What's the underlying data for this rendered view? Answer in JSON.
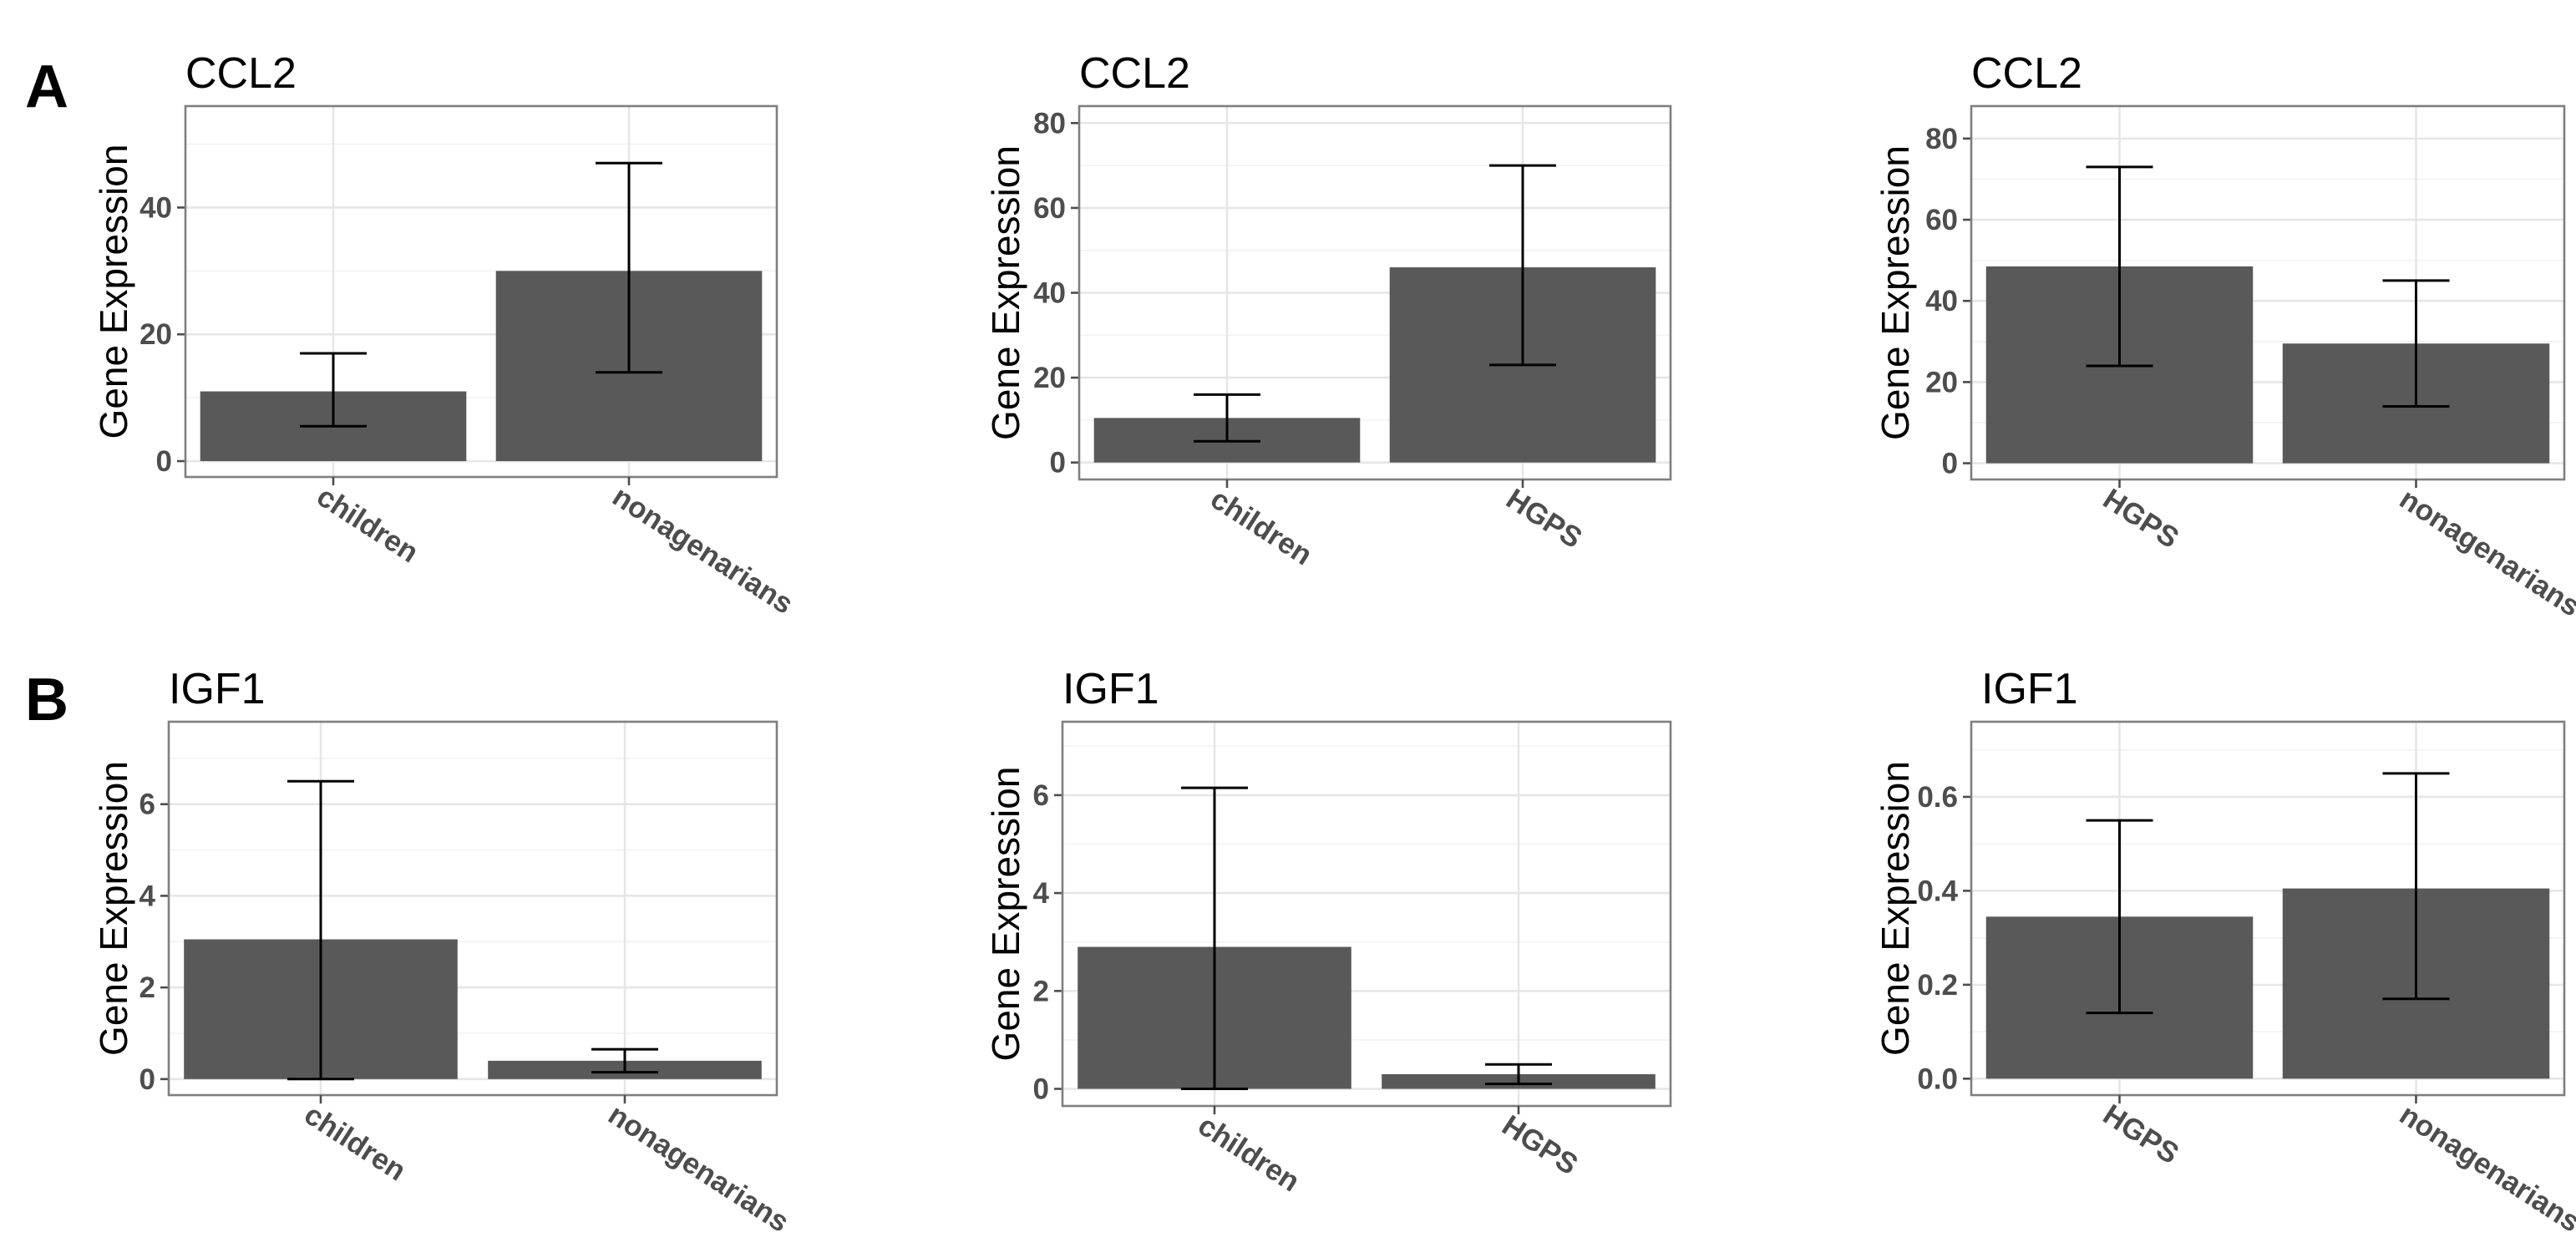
{
  "panel_labels": [
    "A",
    "B"
  ],
  "chart_data": [
    {
      "type": "bar",
      "title": "CCL2",
      "xlabel": "",
      "ylabel": "Gene Expression",
      "categories": [
        "children",
        "nonagenarians"
      ],
      "values": [
        11,
        30
      ],
      "error_low": [
        5.5,
        14
      ],
      "error_high": [
        17,
        47
      ],
      "ylim": [
        -2.5,
        56
      ],
      "yticks": [
        0,
        20,
        40
      ],
      "grid": true
    },
    {
      "type": "bar",
      "title": "CCL2",
      "xlabel": "",
      "ylabel": "Gene Expression",
      "categories": [
        "children",
        "HGPS"
      ],
      "values": [
        10.5,
        46
      ],
      "error_low": [
        5,
        23
      ],
      "error_high": [
        16,
        70
      ],
      "ylim": [
        -4,
        84
      ],
      "yticks": [
        0,
        20,
        40,
        60,
        80
      ],
      "grid": true
    },
    {
      "type": "bar",
      "title": "CCL2",
      "xlabel": "",
      "ylabel": "Gene Expression",
      "categories": [
        "HGPS",
        "nonagenarians"
      ],
      "values": [
        48.5,
        29.5
      ],
      "error_low": [
        24,
        14
      ],
      "error_high": [
        73,
        45
      ],
      "ylim": [
        -4,
        88
      ],
      "yticks": [
        0,
        20,
        40,
        60,
        80
      ],
      "grid": true
    },
    {
      "type": "bar",
      "title": "IGF1",
      "xlabel": "",
      "ylabel": "Gene Expression",
      "categories": [
        "children",
        "nonagenarians"
      ],
      "values": [
        3.05,
        0.4
      ],
      "error_low": [
        0,
        0.15
      ],
      "error_high": [
        6.5,
        0.65
      ],
      "ylim": [
        -0.35,
        7.8
      ],
      "yticks": [
        0,
        2,
        4,
        6
      ],
      "grid": true
    },
    {
      "type": "bar",
      "title": "IGF1",
      "xlabel": "",
      "ylabel": "Gene Expression",
      "categories": [
        "children",
        "HGPS"
      ],
      "values": [
        2.9,
        0.3
      ],
      "error_low": [
        0,
        0.1
      ],
      "error_high": [
        6.15,
        0.5
      ],
      "ylim": [
        -0.35,
        7.5
      ],
      "yticks": [
        0,
        2,
        4,
        6
      ],
      "grid": true
    },
    {
      "type": "bar",
      "title": "IGF1",
      "xlabel": "",
      "ylabel": "Gene Expression",
      "categories": [
        "HGPS",
        "nonagenarians"
      ],
      "values": [
        0.345,
        0.405
      ],
      "error_low": [
        0.14,
        0.17
      ],
      "error_high": [
        0.55,
        0.65
      ],
      "ylim": [
        -0.035,
        0.76
      ],
      "yticks": [
        0.0,
        0.2,
        0.4,
        0.6
      ],
      "ytick_labels": [
        "0.0",
        "0.2",
        "0.4",
        "0.6"
      ],
      "grid": true
    }
  ]
}
